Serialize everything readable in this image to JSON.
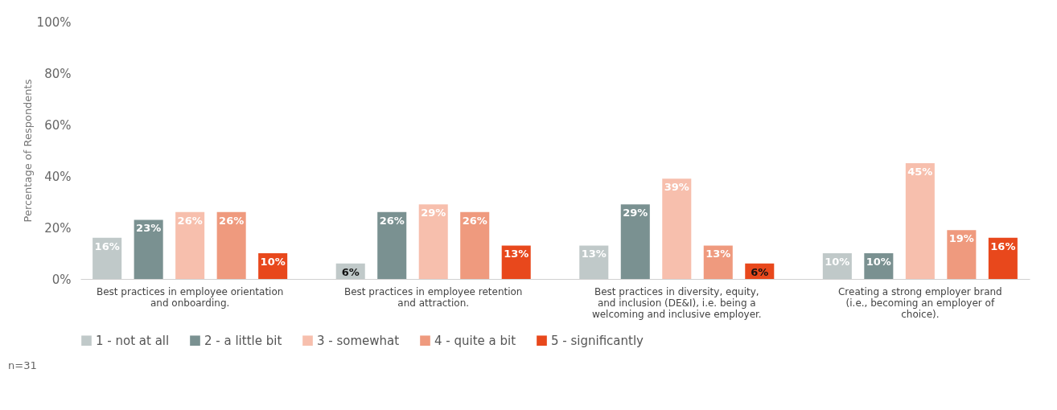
{
  "chart_data": {
    "type": "bar",
    "ylabel": "Percentage of Respondents",
    "categories": [
      "Best practices in employee orientation and onboarding.",
      "Best practices in employee retention and attraction.",
      "Best practices in diversity, equity, and inclusion (DE&I), i.e. being a welcoming and inclusive employer.",
      "Creating a strong employer brand (i.e., becoming an employer of choice)."
    ],
    "series": [
      {
        "name": "1 - not at all",
        "color": "#c0c9c9",
        "values": [
          16,
          6,
          13,
          10
        ],
        "value_labels": [
          "16%",
          "6%",
          "13%",
          "10%"
        ]
      },
      {
        "name": "2 - a little bit",
        "color": "#7a9191",
        "values": [
          23,
          26,
          29,
          10
        ],
        "value_labels": [
          "23%",
          "26%",
          "29%",
          "10%"
        ]
      },
      {
        "name": "3 - somewhat",
        "color": "#f7bfad",
        "values": [
          26,
          29,
          39,
          45
        ],
        "value_labels": [
          "26%",
          "29%",
          "39%",
          "45%"
        ]
      },
      {
        "name": "4 - quite a bit",
        "color": "#ef9a7e",
        "values": [
          26,
          26,
          13,
          19
        ],
        "value_labels": [
          "26%",
          "26%",
          "13%",
          "19%"
        ]
      },
      {
        "name": "5 - significantly",
        "color": "#e8481c",
        "values": [
          10,
          13,
          6,
          16
        ],
        "value_labels": [
          "10%",
          "13%",
          "6%",
          "16%"
        ]
      }
    ],
    "ylim": [
      0,
      100
    ],
    "yticks": [
      {
        "value": 0,
        "label": "0%"
      },
      {
        "value": 20,
        "label": "20%"
      },
      {
        "value": 40,
        "label": "40%"
      },
      {
        "value": 60,
        "label": "60%"
      },
      {
        "value": 80,
        "label": "80%"
      },
      {
        "value": 100,
        "label": "100%"
      }
    ],
    "grid": false,
    "legend": "bottom",
    "annotations": [
      "n=31"
    ]
  }
}
